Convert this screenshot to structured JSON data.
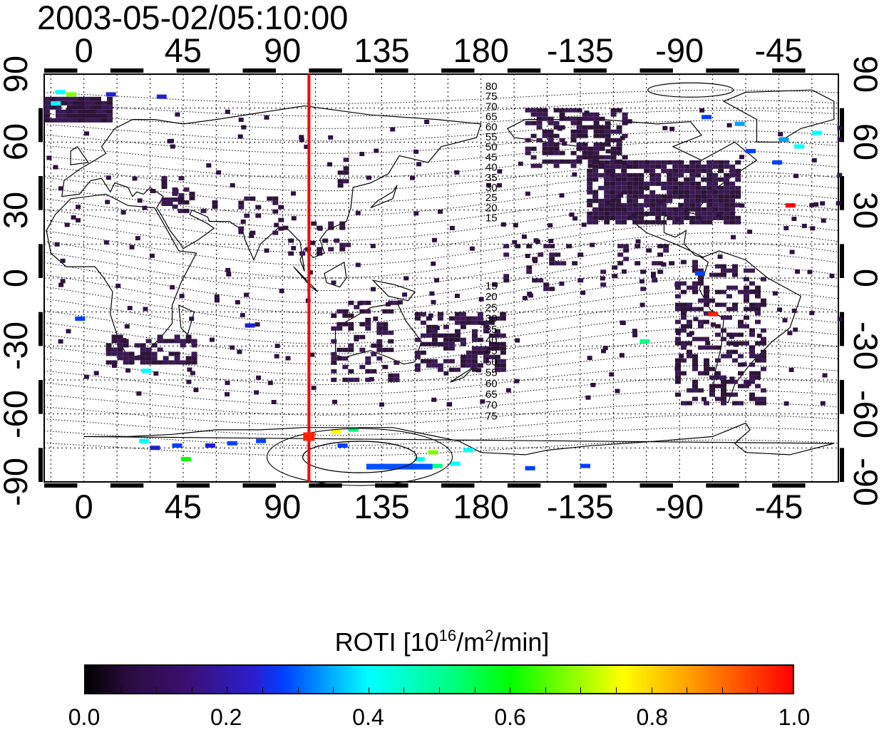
{
  "timestamp": "2003-05-02/05:10:00",
  "lon_ticks_top": [
    "0",
    "45",
    "90",
    "135",
    "180",
    "-135",
    "-90",
    "-45"
  ],
  "lon_ticks_bottom": [
    "0",
    "45",
    "90",
    "135",
    "180",
    "-135",
    "-90",
    "-45"
  ],
  "lat_ticks_left": [
    "90",
    "60",
    "30",
    "0",
    "-30",
    "-60",
    "-90"
  ],
  "lat_ticks_right": [
    "90",
    "60",
    "30",
    "0",
    "-30",
    "-60",
    "-90"
  ],
  "map": {
    "lon_range": [
      -18,
      342
    ],
    "lat_range": [
      -90,
      90
    ],
    "grid": true,
    "marker_line_lon": 102,
    "marker_line_color": "#ff0000",
    "marker_point": {
      "lon": 102,
      "lat": -70
    },
    "contour_labels_north": [
      "80",
      "75",
      "70",
      "65",
      "60",
      "55",
      "50",
      "45",
      "40",
      "35",
      "30",
      "25",
      "20",
      "15"
    ],
    "contour_labels_south": [
      "15",
      "20",
      "25",
      "30",
      "35",
      "40",
      "45",
      "50",
      "55",
      "60",
      "65",
      "70",
      "75"
    ]
  },
  "colorbar": {
    "title_main": "ROTI  [10",
    "title_sup1": "16",
    "title_mid": "/m",
    "title_sup2": "2",
    "title_end": "/min]",
    "range": [
      0.0,
      1.0
    ],
    "ticks": [
      "0.0",
      "0.2",
      "0.4",
      "0.6",
      "0.8",
      "1.0"
    ],
    "colors": [
      "#000000",
      "#3b0f70",
      "#0040ff",
      "#00ffff",
      "#00ff00",
      "#ffff00",
      "#ff0000"
    ]
  }
}
